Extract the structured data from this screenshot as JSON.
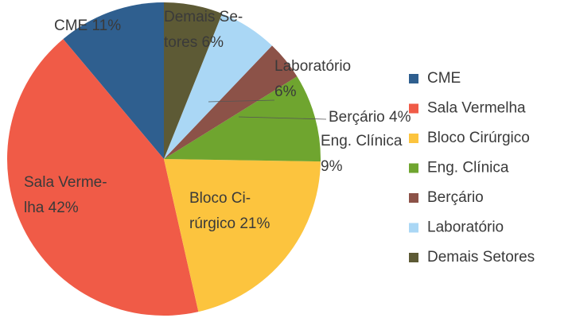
{
  "chart_data": {
    "type": "pie",
    "categories": [
      "CME",
      "Sala Vermelha",
      "Bloco Cirúrgico",
      "Eng. Clínica",
      "Berçário",
      "Laboratório",
      "Demais Setores"
    ],
    "values": [
      11,
      42,
      21,
      9,
      4,
      6,
      6
    ],
    "value_labels": [
      "CME 11%",
      "Sala Verme-\nlha 42%",
      "Bloco Ci-\nrúrgico 21%",
      "Eng. Clínica\n9%",
      "Berçário 4%",
      "Laboratório\n6%",
      "Demais Se-\ntores 6%"
    ],
    "colors": [
      "#2f5f8f",
      "#f05b47",
      "#fcc43e",
      "#6fa52f",
      "#8c5248",
      "#aad7f5",
      "#5d5a35"
    ],
    "legend": "right"
  }
}
